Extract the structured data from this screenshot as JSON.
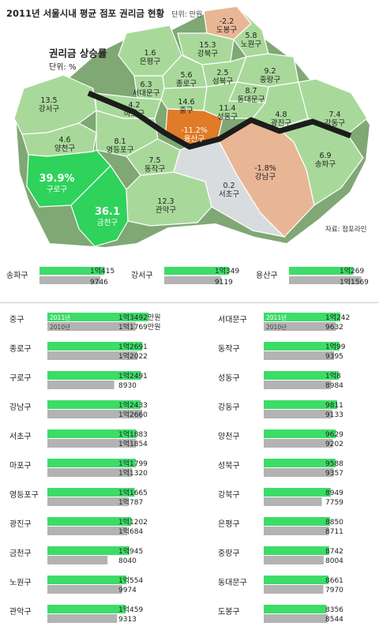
{
  "header": {
    "title": "2011년 서울시내 평균 점포 권리금 현황",
    "unit": "단위: 만원"
  },
  "map": {
    "legend_title": "권리금 상승률",
    "legend_unit": "단위: %",
    "source": "자료: 점포라인",
    "colors": {
      "base": "#a8d99a",
      "highlight": "#2fd25b",
      "negative": "#e9b695",
      "negative_dark": "#e07b28",
      "neutral": "#d9dcdf",
      "river": "#1c1c1c"
    },
    "districts": [
      {
        "name": "도봉구",
        "rate": "-2.2",
        "fill": "negative"
      },
      {
        "name": "노원구",
        "rate": "5.8",
        "fill": "base"
      },
      {
        "name": "강북구",
        "rate": "15.3",
        "fill": "base"
      },
      {
        "name": "은평구",
        "rate": "1.6",
        "fill": "base"
      },
      {
        "name": "종로구",
        "rate": "5.6",
        "fill": "base"
      },
      {
        "name": "성북구",
        "rate": "2.5",
        "fill": "base"
      },
      {
        "name": "중랑구",
        "rate": "9.2",
        "fill": "base"
      },
      {
        "name": "서대문구",
        "rate": "6.3",
        "fill": "base"
      },
      {
        "name": "동대문구",
        "rate": "8.7",
        "fill": "base"
      },
      {
        "name": "마포구",
        "rate": "4.2",
        "fill": "base"
      },
      {
        "name": "중구",
        "rate": "14.6",
        "fill": "base"
      },
      {
        "name": "성동구",
        "rate": "11.4",
        "fill": "base"
      },
      {
        "name": "광진구",
        "rate": "4.8",
        "fill": "base"
      },
      {
        "name": "강동구",
        "rate": "7.4",
        "fill": "base"
      },
      {
        "name": "강서구",
        "rate": "13.5",
        "fill": "base"
      },
      {
        "name": "양천구",
        "rate": "4.6",
        "fill": "base"
      },
      {
        "name": "영등포구",
        "rate": "8.1",
        "fill": "base"
      },
      {
        "name": "용산구",
        "rate": "-11.2%",
        "fill": "negative_dark"
      },
      {
        "name": "동작구",
        "rate": "7.5",
        "fill": "base"
      },
      {
        "name": "강남구",
        "rate": "-1.8%",
        "fill": "negative"
      },
      {
        "name": "송파구",
        "rate": "6.9",
        "fill": "base"
      },
      {
        "name": "구로구",
        "rate": "39.9%",
        "fill": "highlight"
      },
      {
        "name": "금천구",
        "rate": "36.1",
        "fill": "highlight"
      },
      {
        "name": "관악구",
        "rate": "12.3",
        "fill": "base"
      },
      {
        "name": "서초구",
        "rate": "0.2",
        "fill": "neutral"
      }
    ]
  },
  "mini_bars": [
    {
      "name": "송파구",
      "v2011": 10415,
      "v2010": 9746,
      "label2011": "1억415",
      "label2010": "9746"
    },
    {
      "name": "강서구",
      "v2011": 10349,
      "v2010": 9119,
      "label2011": "1억349",
      "label2010": "9119"
    },
    {
      "name": "용산구",
      "v2011": 10269,
      "v2010": 11569,
      "label2011": "1억269",
      "label2010": "1억1569"
    }
  ],
  "chart_data": {
    "type": "bar",
    "unit": "만원",
    "colors": {
      "2011": "#3ddc68",
      "2010": "#b3b3b3"
    },
    "series": [
      {
        "name": "2011년"
      },
      {
        "name": "2010년"
      }
    ],
    "left": [
      {
        "name": "중구",
        "v2011": 13492,
        "v2010": 11769,
        "label2011": "1억3492만원",
        "label2010": "1억1769만원"
      },
      {
        "name": "종로구",
        "v2011": 12691,
        "v2010": 12022,
        "label2011": "1억2691",
        "label2010": "1억2022"
      },
      {
        "name": "구로구",
        "v2011": 12491,
        "v2010": 8930,
        "label2011": "1억2491",
        "label2010": "8930"
      },
      {
        "name": "강남구",
        "v2011": 12433,
        "v2010": 12660,
        "label2011": "1억2433",
        "label2010": "1억2660"
      },
      {
        "name": "서초구",
        "v2011": 11883,
        "v2010": 11854,
        "label2011": "1억1883",
        "label2010": "1억1854"
      },
      {
        "name": "마포구",
        "v2011": 11799,
        "v2010": 11320,
        "label2011": "1억1799",
        "label2010": "1억1320"
      },
      {
        "name": "영등포구",
        "v2011": 11665,
        "v2010": 10787,
        "label2011": "1억1665",
        "label2010": "1억787"
      },
      {
        "name": "광진구",
        "v2011": 11202,
        "v2010": 10684,
        "label2011": "1억1202",
        "label2010": "1억684"
      },
      {
        "name": "금천구",
        "v2011": 10945,
        "v2010": 8040,
        "label2011": "1억945",
        "label2010": "8040"
      },
      {
        "name": "노원구",
        "v2011": 10554,
        "v2010": 9974,
        "label2011": "1억554",
        "label2010": "9974"
      },
      {
        "name": "관악구",
        "v2011": 10459,
        "v2010": 9313,
        "label2011": "1억459",
        "label2010": "9313"
      }
    ],
    "right": [
      {
        "name": "서대문구",
        "v2011": 10242,
        "v2010": 9632,
        "label2011": "1억242",
        "label2010": "9632"
      },
      {
        "name": "동작구",
        "v2011": 10099,
        "v2010": 9395,
        "label2011": "1억99",
        "label2010": "9395"
      },
      {
        "name": "성동구",
        "v2011": 10008,
        "v2010": 8984,
        "label2011": "1억8",
        "label2010": "8984"
      },
      {
        "name": "강동구",
        "v2011": 9811,
        "v2010": 9133,
        "label2011": "9811",
        "label2010": "9133"
      },
      {
        "name": "양천구",
        "v2011": 9629,
        "v2010": 9202,
        "label2011": "9629",
        "label2010": "9202"
      },
      {
        "name": "성북구",
        "v2011": 9588,
        "v2010": 9357,
        "label2011": "9588",
        "label2010": "9357"
      },
      {
        "name": "강북구",
        "v2011": 8949,
        "v2010": 7759,
        "label2011": "8949",
        "label2010": "7759"
      },
      {
        "name": "은평구",
        "v2011": 8850,
        "v2010": 8711,
        "label2011": "8850",
        "label2010": "8711"
      },
      {
        "name": "중랑구",
        "v2011": 8742,
        "v2010": 8004,
        "label2011": "8742",
        "label2010": "8004"
      },
      {
        "name": "동대문구",
        "v2011": 8661,
        "v2010": 7970,
        "label2011": "8661",
        "label2010": "7970"
      },
      {
        "name": "도봉구",
        "v2011": 8356,
        "v2010": 8544,
        "label2011": "8356",
        "label2010": "8544"
      }
    ]
  }
}
